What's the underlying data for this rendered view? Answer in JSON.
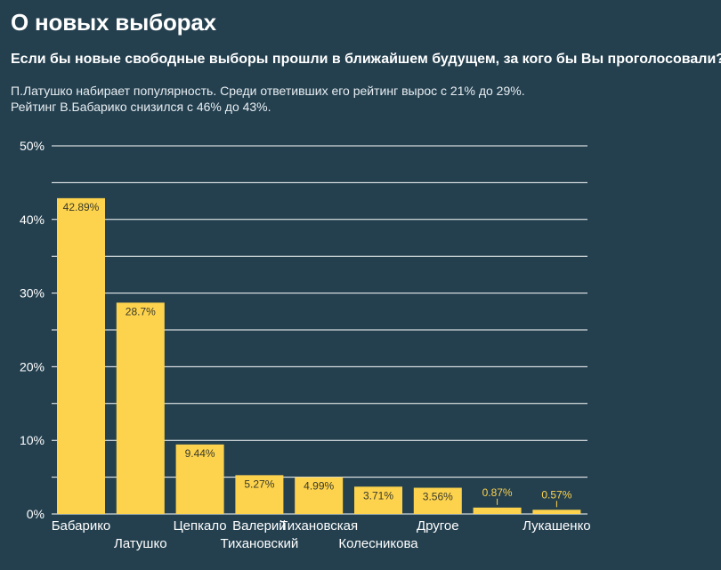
{
  "page": {
    "title": "О новых выборах",
    "subtitle": "Если бы новые свободные выборы прошли в ближайшем будущем, за кого бы Вы проголосовали?",
    "note_line1": "П.Латушко набирает популярность. Среди ответивших его рейтинг вырос с 21% до 29%.",
    "note_line2": "Рейтинг В.Бабарико снизился с 46% до 43%."
  },
  "colors": {
    "background": "#24404f",
    "bar": "#fdd34d",
    "gridline": "#ffffff",
    "text": "#ffffff",
    "label_inside": "#3a3a2a"
  },
  "chart_data": {
    "type": "bar",
    "title": "",
    "xlabel": "",
    "ylabel": "",
    "ylim": [
      0,
      50
    ],
    "yticks": [
      "0%",
      "10%",
      "20%",
      "30%",
      "40%",
      "50%"
    ],
    "grid": true,
    "categories": [
      "Бабарико",
      "Латушко",
      "Цепкало",
      "Валерий Тихановский",
      "Тихановская",
      "Колесникова",
      "Другое",
      "",
      "Лукашенко"
    ],
    "category_lines": [
      [
        "Бабарико"
      ],
      [
        "Латушко"
      ],
      [
        "Цепкало"
      ],
      [
        "Валерий",
        "Тихановский"
      ],
      [
        "Тихановская"
      ],
      [
        "Колесникова"
      ],
      [
        "Другое"
      ],
      [
        ""
      ],
      [
        "Лукашенко"
      ]
    ],
    "label_row": [
      0,
      1,
      0,
      0,
      0,
      1,
      0,
      0,
      0
    ],
    "values": [
      42.89,
      28.7,
      9.44,
      5.27,
      4.99,
      3.71,
      3.56,
      0.87,
      0.57
    ],
    "value_labels": [
      "42.89%",
      "28.7%",
      "9.44%",
      "5.27%",
      "4.99%",
      "3.71%",
      "3.56%",
      "0.87%",
      "0.57%"
    ]
  }
}
